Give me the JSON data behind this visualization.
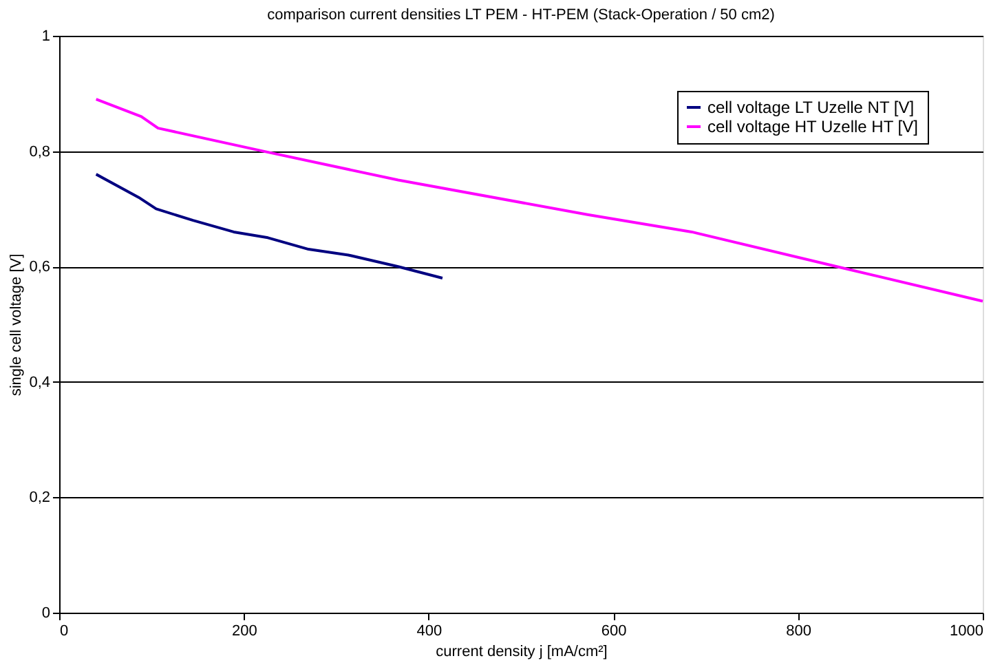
{
  "chart_data": {
    "type": "line",
    "title": "comparison current densities LT PEM - HT-PEM (Stack-Operation / 50 cm2)",
    "xlabel": "current density j [mA/cm²]",
    "ylabel": "single cell voltage [V]",
    "series": [
      {
        "name": "cell voltage LT Uzelle NT [V]",
        "color": "#000080",
        "x": [
          40,
          86,
          105,
          145,
          189,
          226,
          270,
          313,
          367,
          415
        ],
        "values": [
          0.76,
          0.72,
          0.7,
          0.68,
          0.66,
          0.65,
          0.63,
          0.62,
          0.6,
          0.58
        ]
      },
      {
        "name": "cell voltage HT Uzelle HT [V]",
        "color": "#ff00ff",
        "x": [
          40,
          89,
          107,
          221,
          367,
          572,
          685,
          842,
          1000
        ],
        "values": [
          0.89,
          0.86,
          0.84,
          0.8,
          0.75,
          0.69,
          0.66,
          0.6,
          0.54
        ]
      }
    ],
    "xlim": [
      0,
      1000
    ],
    "xticks": [
      0,
      200,
      400,
      600,
      800,
      1000
    ],
    "ylim": [
      0,
      1
    ],
    "yticks": [
      0,
      {
        "value": 0.2,
        "label": "0,2"
      },
      {
        "value": 0.4,
        "label": "0,4"
      },
      {
        "value": 0.6,
        "label": "0,6"
      },
      {
        "value": 0.8,
        "label": "0,8"
      },
      1
    ],
    "grid": "y",
    "legend": "top right",
    "marker": "none",
    "line_style": "solid"
  }
}
